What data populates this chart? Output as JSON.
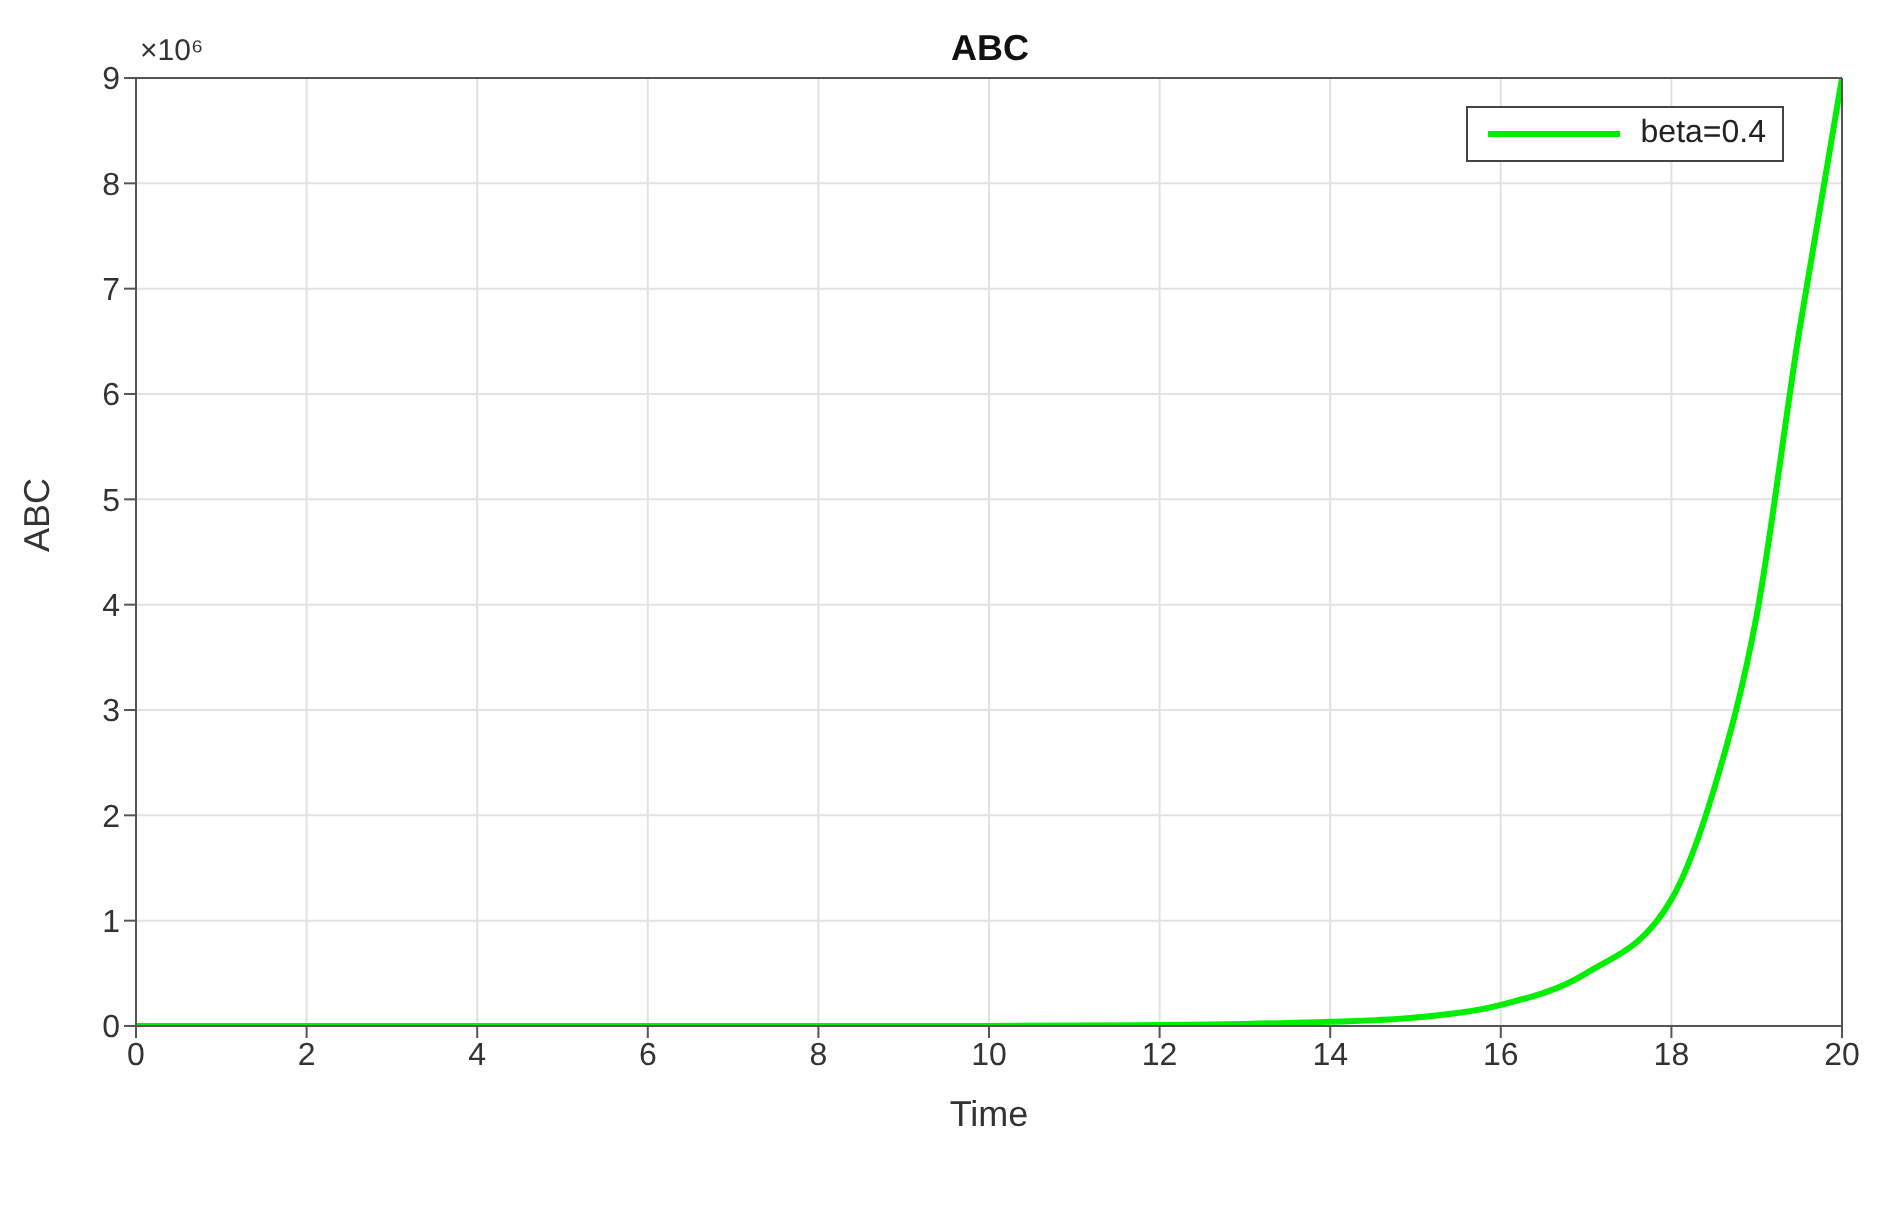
{
  "chart_data": {
    "type": "line",
    "title": "ABC",
    "xlabel": "Time",
    "ylabel": "ABC",
    "annotations": [
      "×10⁶"
    ],
    "series": [
      {
        "name": "beta=0.4",
        "color": "#00ee00",
        "x": [
          0,
          2,
          4,
          6,
          8,
          10,
          12,
          13,
          14,
          15,
          16,
          17,
          18,
          18.5,
          19,
          19.5,
          19.75,
          20
        ],
        "values": [
          0,
          0,
          0,
          0,
          0,
          0,
          0.01,
          0.02,
          0.04,
          0.08,
          0.2,
          0.5,
          1.2,
          2.25,
          3.9,
          6.6,
          7.8,
          9
        ]
      }
    ],
    "xlim": [
      0,
      20
    ],
    "xticks": [
      0,
      2,
      4,
      6,
      8,
      10,
      12,
      14,
      16,
      18,
      20
    ],
    "ylim": [
      0,
      9
    ],
    "yticks": [
      0,
      1,
      2,
      3,
      4,
      5,
      6,
      7,
      8,
      9
    ],
    "grid": true,
    "legend": "top right",
    "marker": "none",
    "line_style": "solid"
  }
}
